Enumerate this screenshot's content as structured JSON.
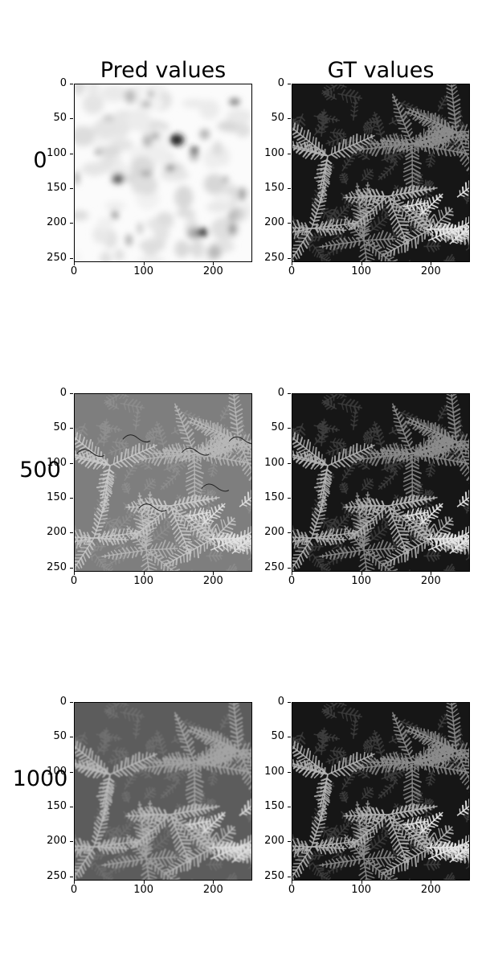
{
  "chart_data": {
    "type": "heatmap",
    "columns": [
      "Pred values",
      "GT values"
    ],
    "rows": [
      "0",
      "500",
      "1000"
    ],
    "panels": [
      {
        "row": "0",
        "column": "Pred values",
        "content": "smooth blob texture, mostly white with scattered dark spots"
      },
      {
        "row": "0",
        "column": "GT values",
        "content": "grayscale fern leaves, high contrast"
      },
      {
        "row": "500",
        "column": "Pred values",
        "content": "grayscale fern leaves, low contrast with artifacts"
      },
      {
        "row": "500",
        "column": "GT values",
        "content": "grayscale fern leaves, high contrast"
      },
      {
        "row": "1000",
        "column": "Pred values",
        "content": "grayscale fern leaves, slightly blurred"
      },
      {
        "row": "1000",
        "column": "GT values",
        "content": "grayscale fern leaves, high contrast"
      }
    ],
    "xlim": [
      0,
      255
    ],
    "ylim": [
      255,
      0
    ],
    "xticks": [
      0,
      100,
      200
    ],
    "yticks": [
      0,
      50,
      100,
      150,
      200,
      250
    ],
    "colormap": "gray",
    "grid": false
  }
}
